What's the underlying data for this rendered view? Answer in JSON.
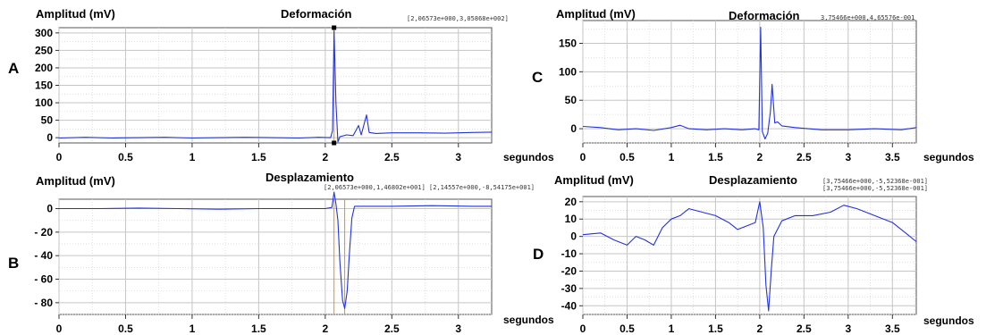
{
  "chart_data": [
    {
      "id": "A",
      "panel_label": "A",
      "type": "line",
      "ylabel": "Amplitud (mV)",
      "title": "Deformación",
      "xlabel": "segundos",
      "cursor_readouts": [
        "[2,06573e+000,3,05868e+002]"
      ],
      "xlim": [
        0,
        3.25
      ],
      "ylim": [
        -15,
        315
      ],
      "xticks": [
        0,
        0.5,
        1,
        1.5,
        2,
        2.5,
        3
      ],
      "xtick_labels": [
        "0",
        "0.5",
        "1",
        "1.5",
        "2",
        "2.5",
        "3"
      ],
      "yticks": [
        300,
        250,
        200,
        150,
        100,
        50,
        0
      ],
      "ytick_labels": [
        "300",
        "250",
        "200",
        "150",
        "100",
        "50",
        "0"
      ],
      "grid": true,
      "line_color": "#2233dd",
      "cursor_color": "#ff8800",
      "cursor_x": [
        2.066
      ],
      "series": [
        {
          "values": [
            [
              0,
              -1
            ],
            [
              0.2,
              1
            ],
            [
              0.4,
              -1
            ],
            [
              0.6,
              0
            ],
            [
              0.8,
              1
            ],
            [
              1.0,
              -1
            ],
            [
              1.2,
              0
            ],
            [
              1.4,
              1
            ],
            [
              1.6,
              0
            ],
            [
              1.8,
              -1
            ],
            [
              1.95,
              1
            ],
            [
              2.04,
              0
            ],
            [
              2.055,
              20
            ],
            [
              2.066,
              306
            ],
            [
              2.08,
              100
            ],
            [
              2.095,
              -12
            ],
            [
              2.11,
              3
            ],
            [
              2.16,
              8
            ],
            [
              2.21,
              6
            ],
            [
              2.25,
              35
            ],
            [
              2.27,
              8
            ],
            [
              2.31,
              65
            ],
            [
              2.33,
              15
            ],
            [
              2.38,
              12
            ],
            [
              2.5,
              14
            ],
            [
              2.7,
              14
            ],
            [
              2.9,
              13
            ],
            [
              3.1,
              15
            ],
            [
              3.25,
              16
            ]
          ]
        }
      ]
    },
    {
      "id": "B",
      "panel_label": "B",
      "type": "line",
      "ylabel": "Amplitud (mV)",
      "title": "Desplazamiento",
      "xlabel": "segundos",
      "cursor_readouts": [
        "[2,06573e+000,1,46802e+001] [2,14557e+000,-8,54175e+001]"
      ],
      "xlim": [
        0,
        3.25
      ],
      "ylim": [
        -90,
        8
      ],
      "xticks": [
        0,
        0.5,
        1,
        1.5,
        2,
        2.5,
        3
      ],
      "xtick_labels": [
        "0",
        "0.5",
        "1",
        "1.5",
        "2",
        "2.5",
        "3"
      ],
      "yticks": [
        0,
        -20,
        -40,
        -60,
        -80
      ],
      "ytick_labels": [
        "0",
        "- 20",
        "- 40",
        "- 60",
        "- 80"
      ],
      "grid": true,
      "line_color": "#2233dd",
      "cursor_color": "#ff8800",
      "cursor_x": [
        2.066,
        2.146
      ],
      "series": [
        {
          "values": [
            [
              0,
              0
            ],
            [
              0.3,
              0
            ],
            [
              0.6,
              0.5
            ],
            [
              0.9,
              0
            ],
            [
              1.2,
              -0.5
            ],
            [
              1.5,
              0
            ],
            [
              1.8,
              0
            ],
            [
              2.0,
              0
            ],
            [
              2.05,
              1
            ],
            [
              2.066,
              14
            ],
            [
              2.08,
              4
            ],
            [
              2.095,
              -10
            ],
            [
              2.11,
              -45
            ],
            [
              2.13,
              -78
            ],
            [
              2.146,
              -85
            ],
            [
              2.165,
              -70
            ],
            [
              2.18,
              -40
            ],
            [
              2.2,
              -8
            ],
            [
              2.22,
              2
            ],
            [
              2.3,
              2
            ],
            [
              2.5,
              2
            ],
            [
              2.8,
              2.5
            ],
            [
              3.1,
              2
            ],
            [
              3.25,
              2
            ]
          ]
        }
      ]
    },
    {
      "id": "C",
      "panel_label": "C",
      "type": "line",
      "ylabel": "Amplitud (mV)",
      "title": "Deformación",
      "xlabel": "segundos",
      "cursor_readouts": [
        "3,75466e+000,4,65576e-001"
      ],
      "xlim": [
        0,
        3.77
      ],
      "ylim": [
        -25,
        190
      ],
      "xticks": [
        0,
        0.5,
        1,
        1.5,
        2,
        2.5,
        3,
        3.5
      ],
      "xtick_labels": [
        "0",
        "0.5",
        "1",
        "1.5",
        "2",
        "2.5",
        "3",
        "3.5"
      ],
      "yticks": [
        150,
        100,
        50,
        0
      ],
      "ytick_labels": [
        "150",
        "100",
        "50",
        "0"
      ],
      "grid": true,
      "line_color": "#2233dd",
      "cursor_color": "#ff8800",
      "cursor_x": [],
      "series": [
        {
          "values": [
            [
              0,
              4
            ],
            [
              0.2,
              2
            ],
            [
              0.4,
              -2
            ],
            [
              0.6,
              0
            ],
            [
              0.8,
              -3
            ],
            [
              1.0,
              2
            ],
            [
              1.1,
              6
            ],
            [
              1.2,
              0
            ],
            [
              1.4,
              -2
            ],
            [
              1.6,
              0
            ],
            [
              1.8,
              -2
            ],
            [
              1.95,
              0
            ],
            [
              1.99,
              -2
            ],
            [
              2.01,
              178
            ],
            [
              2.03,
              -5
            ],
            [
              2.06,
              -18
            ],
            [
              2.09,
              -8
            ],
            [
              2.12,
              30
            ],
            [
              2.14,
              78
            ],
            [
              2.17,
              10
            ],
            [
              2.2,
              12
            ],
            [
              2.25,
              5
            ],
            [
              2.4,
              2
            ],
            [
              2.7,
              -2
            ],
            [
              3.0,
              -2
            ],
            [
              3.3,
              0
            ],
            [
              3.6,
              -2
            ],
            [
              3.77,
              2
            ]
          ]
        }
      ]
    },
    {
      "id": "D",
      "panel_label": "D",
      "type": "line",
      "ylabel": "Amplitud (mV)",
      "title": "Desplazamiento",
      "xlabel": "segundos",
      "cursor_readouts": [
        "[3,75466e+000,-5,52368e-001]",
        "[3,75466e+000,-5,52368e-001]"
      ],
      "xlim": [
        0,
        3.77
      ],
      "ylim": [
        -45,
        23
      ],
      "xticks": [
        0,
        0.5,
        1,
        1.5,
        2,
        2.5,
        3,
        3.5
      ],
      "xtick_labels": [
        "0",
        "0.5",
        "1",
        "1.5",
        "2",
        "2.5",
        "3",
        "3.5"
      ],
      "yticks": [
        20,
        10,
        0,
        -10,
        -20,
        -30,
        -40
      ],
      "ytick_labels": [
        "20",
        "10",
        "0",
        "-10",
        "-20",
        "-30",
        "-40"
      ],
      "grid": true,
      "line_color": "#2233dd",
      "cursor_color": "#ff8800",
      "cursor_x": [],
      "series": [
        {
          "values": [
            [
              0,
              1
            ],
            [
              0.2,
              2
            ],
            [
              0.35,
              -2
            ],
            [
              0.5,
              -5
            ],
            [
              0.6,
              0
            ],
            [
              0.7,
              -2
            ],
            [
              0.8,
              -5
            ],
            [
              0.9,
              5
            ],
            [
              1.0,
              10
            ],
            [
              1.1,
              12
            ],
            [
              1.2,
              16
            ],
            [
              1.35,
              14
            ],
            [
              1.5,
              12
            ],
            [
              1.65,
              8
            ],
            [
              1.75,
              4
            ],
            [
              1.85,
              6
            ],
            [
              1.95,
              8
            ],
            [
              2.0,
              20
            ],
            [
              2.04,
              5
            ],
            [
              2.07,
              -28
            ],
            [
              2.1,
              -43
            ],
            [
              2.13,
              -20
            ],
            [
              2.16,
              0
            ],
            [
              2.25,
              9
            ],
            [
              2.4,
              12
            ],
            [
              2.6,
              12
            ],
            [
              2.8,
              14
            ],
            [
              2.95,
              18
            ],
            [
              3.1,
              16
            ],
            [
              3.3,
              12
            ],
            [
              3.5,
              8
            ],
            [
              3.65,
              2
            ],
            [
              3.77,
              -3
            ]
          ]
        }
      ]
    }
  ]
}
